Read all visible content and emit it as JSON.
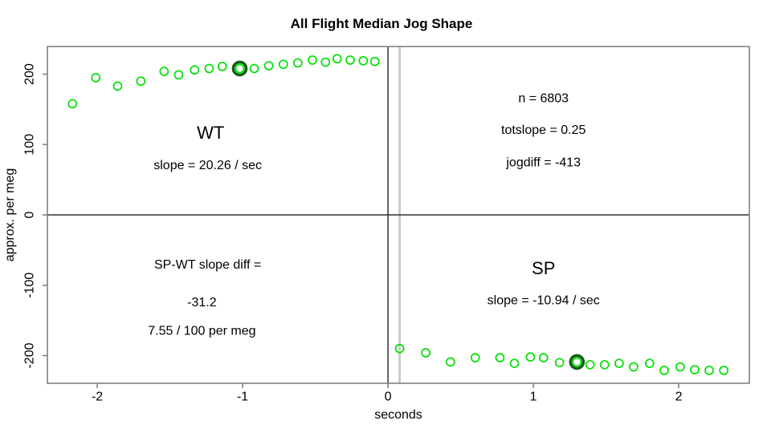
{
  "title": "All Flight Median Jog Shape",
  "colors": {
    "point_green": "#00e000",
    "highlight_ring_green": "#0f5f0f",
    "box_gray": "#808080",
    "tick_gray": "#808080",
    "zero_line": "#333333",
    "marker_line_gray": "#cccccc",
    "text": "#000000"
  },
  "chart_data": {
    "type": "scatter",
    "title": "All Flight Median Jog Shape",
    "xlabel": "seconds",
    "ylabel": "approx. per meg",
    "xlim": [
      -2.343,
      2.486
    ],
    "ylim": [
      -239.3,
      239.3
    ],
    "x_ticks": [
      -2,
      -1,
      0,
      1,
      2
    ],
    "y_ticks": [
      -200,
      -100,
      0,
      100,
      200
    ],
    "grid": false,
    "legend": "none",
    "reference_lines": {
      "horizontal_zero": 0,
      "vertical_zero": 0,
      "vertical_gray_marker": 0.08
    },
    "series": [
      {
        "name": "WT",
        "marker": "open-circle",
        "highlight_index": 9,
        "points": [
          [
            -2.17,
            158
          ],
          [
            -2.01,
            195
          ],
          [
            -1.86,
            183
          ],
          [
            -1.7,
            190
          ],
          [
            -1.54,
            204
          ],
          [
            -1.44,
            199
          ],
          [
            -1.33,
            206
          ],
          [
            -1.23,
            208
          ],
          [
            -1.14,
            211
          ],
          [
            -1.02,
            208
          ],
          [
            -0.92,
            208
          ],
          [
            -0.82,
            212
          ],
          [
            -0.72,
            214
          ],
          [
            -0.62,
            216
          ],
          [
            -0.52,
            220
          ],
          [
            -0.43,
            217
          ],
          [
            -0.35,
            222
          ],
          [
            -0.26,
            220
          ],
          [
            -0.17,
            219
          ],
          [
            -0.09,
            218
          ]
        ]
      },
      {
        "name": "SP",
        "marker": "open-circle",
        "highlight_index": 9,
        "points": [
          [
            0.08,
            -190
          ],
          [
            0.26,
            -196
          ],
          [
            0.43,
            -209
          ],
          [
            0.6,
            -203
          ],
          [
            0.77,
            -203
          ],
          [
            0.87,
            -211
          ],
          [
            0.98,
            -202
          ],
          [
            1.07,
            -203
          ],
          [
            1.18,
            -210
          ],
          [
            1.3,
            -209
          ],
          [
            1.39,
            -213
          ],
          [
            1.49,
            -213
          ],
          [
            1.59,
            -211
          ],
          [
            1.69,
            -216
          ],
          [
            1.8,
            -211
          ],
          [
            1.9,
            -221
          ],
          [
            2.01,
            -216
          ],
          [
            2.11,
            -220
          ],
          [
            2.21,
            -221
          ],
          [
            2.31,
            -221
          ]
        ]
      }
    ],
    "annotations": [
      {
        "text": "WT",
        "x": -1.22,
        "y": 117,
        "size": 22
      },
      {
        "text": "slope = 20.26 / sec",
        "x": -1.24,
        "y": 70,
        "size": 16
      },
      {
        "text": "n = 6803",
        "x": 1.07,
        "y": 165,
        "size": 16
      },
      {
        "text": "totslope = 0.25",
        "x": 1.07,
        "y": 120,
        "size": 16
      },
      {
        "text": "jogdiff = -413",
        "x": 1.07,
        "y": 74,
        "size": 16
      },
      {
        "text": "SP-WT slope diff =",
        "x": -1.24,
        "y": -71,
        "size": 16
      },
      {
        "text": "-31.2",
        "x": -1.28,
        "y": -125,
        "size": 16
      },
      {
        "text": "7.55 / 100 per meg",
        "x": -1.28,
        "y": -165,
        "size": 16
      },
      {
        "text": "SP",
        "x": 1.07,
        "y": -76,
        "size": 22
      },
      {
        "text": "slope = -10.94 / sec",
        "x": 1.07,
        "y": -122,
        "size": 16
      }
    ]
  }
}
